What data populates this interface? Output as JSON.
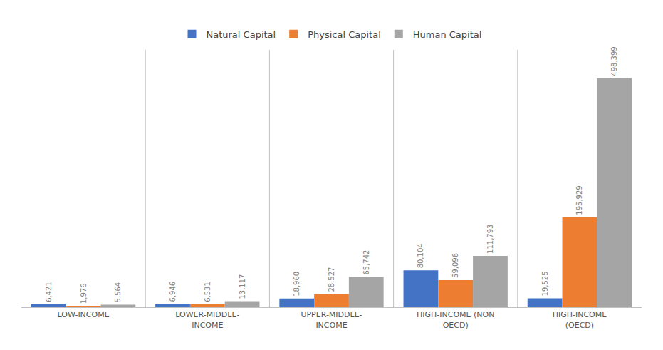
{
  "chart_data": {
    "type": "bar",
    "categories": [
      "LOW-INCOME",
      "LOWER-MIDDLE-\nINCOME",
      "UPPER-MIDDLE-\nINCOME",
      "HIGH-INCOME (NON\nOECD)",
      "HIGH-INCOME\n(OECD)"
    ],
    "series": [
      {
        "name": "Natural Capital",
        "color": "#4472C4",
        "values": [
          6421,
          6946,
          18960,
          80104,
          19525
        ],
        "value_labels": [
          "6,421",
          "6,946",
          "18,960",
          "80,104",
          "19,525"
        ]
      },
      {
        "name": "Physical Capital",
        "color": "#ED7D31",
        "values": [
          1976,
          6531,
          28527,
          59096,
          195929
        ],
        "value_labels": [
          "1,976",
          "6,531",
          "28,527",
          "59,096",
          "195,929"
        ]
      },
      {
        "name": "Human Capital",
        "color": "#A5A5A5",
        "values": [
          5564,
          13117,
          65742,
          111793,
          498399
        ],
        "value_labels": [
          "5,564",
          "13,117",
          "65,742",
          "111,793",
          "498,399"
        ]
      }
    ],
    "ylim": [
      0,
      560000
    ],
    "grid": false,
    "legend": "top",
    "data_labels": true,
    "tick_labels": "x"
  }
}
